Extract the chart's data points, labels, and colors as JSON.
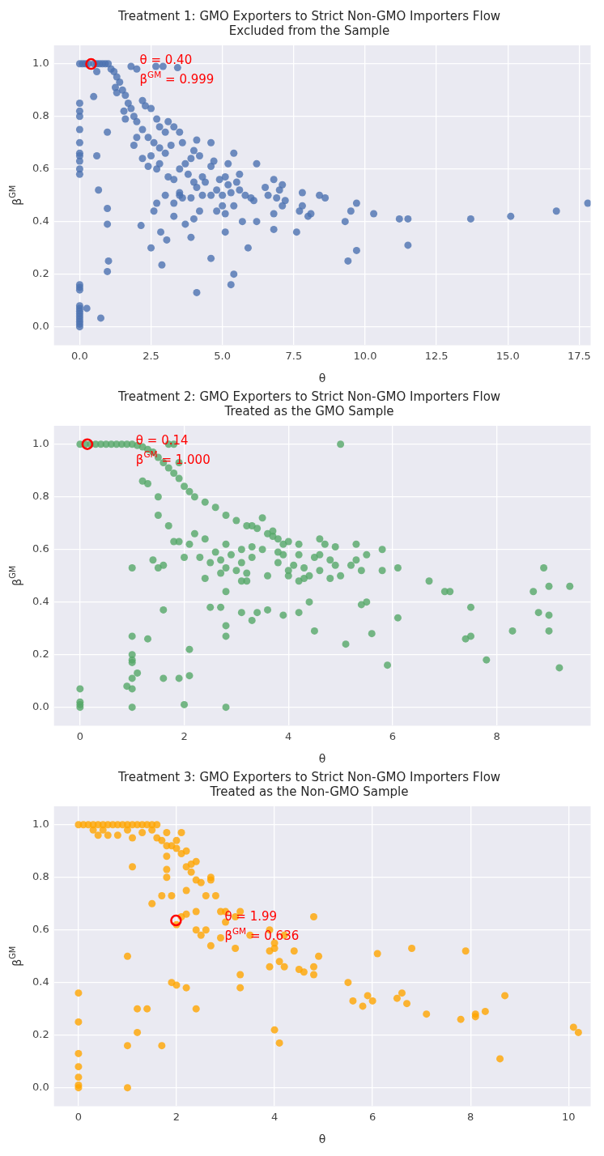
{
  "chart_data": [
    {
      "type": "scatter",
      "title": "Treatment 1: GMO Exporters to Strict Non-GMO Importers Flow",
      "subtitle": "Excluded from the Sample",
      "xlabel": "θ",
      "ylabel": "β$^{GM}$",
      "marker": "circle",
      "grid": true,
      "xlim": [
        -0.9,
        17.9
      ],
      "ylim": [
        -0.07,
        1.07
      ],
      "xticks": [
        {
          "value": 0,
          "label": "0.0"
        },
        {
          "value": 2.5,
          "label": "2.5"
        },
        {
          "value": 5,
          "label": "5.0"
        },
        {
          "value": 7.5,
          "label": "7.5"
        },
        {
          "value": 10,
          "label": "10.0"
        },
        {
          "value": 12.5,
          "label": "12.5"
        },
        {
          "value": 15,
          "label": "15.0"
        },
        {
          "value": 17.5,
          "label": "17.5"
        }
      ],
      "yticks": [
        {
          "value": 0,
          "label": "0.0"
        },
        {
          "value": 0.2,
          "label": "0.2"
        },
        {
          "value": 0.4,
          "label": "0.4"
        },
        {
          "value": 0.6,
          "label": "0.6"
        },
        {
          "value": 0.8,
          "label": "0.8"
        },
        {
          "value": 1,
          "label": "1.0"
        }
      ],
      "series": [
        {
          "color": "#4c72b0",
          "x": [
            0,
            0,
            0,
            0,
            0,
            0,
            0,
            0,
            0,
            0,
            0,
            0,
            0,
            0,
            0,
            0,
            0,
            0,
            0,
            0,
            0,
            0,
            0,
            0.1,
            0.2,
            0.3,
            0.5,
            0.6,
            0.7,
            0.8,
            0.9,
            1.0,
            0.25,
            0.74,
            0.49,
            0.6,
            0.6,
            0.66,
            0.97,
            0.97,
            0.97,
            1.01,
            0.97,
            2.15,
            2.5,
            2.88,
            2.84,
            3.05,
            2.67,
            2.92,
            3.43,
            1.1,
            1.2,
            1.3,
            1.4,
            1.5,
            1.6,
            1.7,
            1.8,
            1.9,
            2.0,
            2.2,
            2.4,
            2.6,
            2.8,
            1.25,
            1.3,
            1.55,
            1.6,
            1.9,
            2.0,
            2.2,
            2.4,
            2.5,
            2.7,
            2.2,
            2.3,
            2.5,
            2.7,
            2.8,
            3.0,
            3.1,
            3.3,
            3.5,
            3.6,
            3.2,
            3.0,
            2.8,
            3.1,
            3.3,
            3.5,
            3.7,
            3.9,
            4.0,
            4.1,
            4.2,
            3.8,
            4.0,
            4.3,
            4.1,
            4.6,
            4.7,
            4.6,
            4.4,
            4.8,
            4.9,
            5.1,
            5.2,
            5.3,
            5.0,
            5.4,
            5.2,
            5.6,
            5.5,
            5.6,
            5.8,
            6.1,
            6.2,
            6.0,
            6.5,
            6.6,
            6.8,
            6.9,
            7.0,
            7.1,
            7.2,
            7.1,
            6.8,
            6.8,
            7.6,
            7.7,
            7.8,
            7.8,
            8.0,
            8.1,
            8.4,
            8.6,
            9.3,
            9.5,
            9.7,
            10.3,
            11.2,
            11.5,
            13.7,
            15.1,
            16.7,
            17.8,
            9.7,
            9.4,
            11.5,
            5.4,
            5.3,
            4.6,
            4.1,
            3.7,
            3.9,
            3.3,
            3.0,
            2.7,
            2.6,
            3.3,
            3.5,
            3.6,
            4.0,
            4.2,
            4.8,
            5.0,
            5.1,
            5.1,
            5.7,
            5.9,
            6.2,
            5.4,
            3.9,
            4.3,
            4.6,
            3.5,
            2.0,
            1.8
          ],
          "values": [
            0.85,
            0.82,
            0.8,
            0.75,
            0.7,
            0.66,
            0.65,
            0.63,
            0.6,
            0.58,
            0.16,
            0.15,
            0.14,
            0.08,
            0.07,
            0.06,
            0.05,
            0.04,
            0.03,
            0.02,
            0.01,
            0,
            1,
            1,
            1,
            1,
            1,
            1,
            1,
            1,
            1,
            1,
            0.07,
            0.033,
            0.875,
            0.97,
            0.65,
            0.52,
            0.74,
            0.45,
            0.39,
            0.25,
            0.21,
            0.385,
            0.3,
            0.235,
            0.36,
            0.33,
            0.99,
            0.99,
            0.985,
            0.98,
            0.97,
            0.95,
            0.93,
            0.9,
            0.88,
            0.85,
            0.83,
            0.8,
            0.78,
            0.75,
            0.72,
            0.7,
            0.68,
            0.91,
            0.89,
            0.82,
            0.79,
            0.69,
            0.72,
            0.64,
            0.61,
            0.65,
            0.6,
            0.86,
            0.84,
            0.83,
            0.79,
            0.76,
            0.74,
            0.78,
            0.76,
            0.74,
            0.7,
            0.69,
            0.66,
            0.62,
            0.57,
            0.56,
            0.6,
            0.62,
            0.64,
            0.67,
            0.71,
            0.65,
            0.58,
            0.55,
            0.57,
            0.53,
            0.61,
            0.63,
            0.7,
            0.55,
            0.52,
            0.56,
            0.57,
            0.54,
            0.51,
            0.5,
            0.66,
            0.62,
            0.58,
            0.55,
            0.52,
            0.5,
            0.48,
            0.62,
            0.49,
            0.53,
            0.5,
            0.56,
            0.49,
            0.52,
            0.54,
            0.48,
            0.46,
            0.43,
            0.37,
            0.36,
            0.44,
            0.46,
            0.51,
            0.42,
            0.43,
            0.5,
            0.49,
            0.4,
            0.44,
            0.47,
            0.43,
            0.41,
            0.41,
            0.41,
            0.42,
            0.44,
            0.47,
            0.29,
            0.25,
            0.31,
            0.2,
            0.16,
            0.26,
            0.13,
            0.39,
            0.34,
            0.42,
            0.5,
            0.47,
            0.44,
            0.47,
            0.5,
            0.49,
            0.41,
            0.44,
            0.44,
            0.46,
            0.43,
            0.36,
            0.4,
            0.3,
            0.4,
            0.46,
            0.49,
            0.5,
            0.5,
            0.51,
            0.98,
            0.99
          ]
        },
        {
          "color": "#ff0000",
          "x": [
            0.4
          ],
          "values": [
            0.999
          ]
        }
      ],
      "annotations": [
        "θ = 0.40",
        "β$^{GM}$ = 0.999"
      ]
    },
    {
      "type": "scatter",
      "title": "Treatment 2: GMO Exporters to Strict Non-GMO Importers Flow",
      "subtitle": "Treated as the GMO Sample",
      "xlabel": "θ",
      "ylabel": "β$^{GM}$",
      "marker": "circle",
      "grid": true,
      "xlim": [
        -0.5,
        9.8
      ],
      "ylim": [
        -0.07,
        1.07
      ],
      "xticks": [
        0,
        2,
        4,
        6,
        8
      ],
      "yticks": [
        {
          "value": 0,
          "label": "0.0"
        },
        {
          "value": 0.2,
          "label": "0.2"
        },
        {
          "value": 0.4,
          "label": "0.4"
        },
        {
          "value": 0.6,
          "label": "0.6"
        },
        {
          "value": 0.8,
          "label": "0.8"
        },
        {
          "value": 1,
          "label": "1.0"
        }
      ],
      "series": [
        {
          "color": "#55a868",
          "x": [
            0,
            0.1,
            0.2,
            0.3,
            0.4,
            0.5,
            0.6,
            0.7,
            0.8,
            0.9,
            1.0,
            1.1,
            1.2,
            1.3,
            1.4,
            1.5,
            1.6,
            1.7,
            1.8,
            1.9,
            2.0,
            2.1,
            2.2,
            2.4,
            2.6,
            2.8,
            3.0,
            3.2,
            3.4,
            3.6,
            3.8,
            4.0,
            1.7,
            1.8,
            5.0,
            1.9,
            1.2,
            1.3,
            1.5,
            1.5,
            1.7,
            1.8,
            1.9,
            2.0,
            2.1,
            2.2,
            2.4,
            2.3,
            2.5,
            2.4,
            2.6,
            2.7,
            2.7,
            2.8,
            2.8,
            2.9,
            3.0,
            3.1,
            3.1,
            3.1,
            3.2,
            3.3,
            3.3,
            3.2,
            3.3,
            3.5,
            3.5,
            3.6,
            3.7,
            3.7,
            3.8,
            3.9,
            3.9,
            3.8,
            4.0,
            4.0,
            4.1,
            4.2,
            4.2,
            4.3,
            4.3,
            4.2,
            4.4,
            4.5,
            4.6,
            4.6,
            4.6,
            4.7,
            4.8,
            4.8,
            4.9,
            4.9,
            5.0,
            5.2,
            5.3,
            5.3,
            5.4,
            5.5,
            5.8,
            5.8,
            6.1,
            6.7,
            7.0,
            7.1,
            8.7,
            9.0,
            9.4,
            8.9,
            8.8,
            9.0,
            9.0,
            8.3,
            7.5,
            7.5,
            7.4,
            7.8,
            9.2,
            6.1,
            5.6,
            5.9,
            5.1,
            4.5,
            5.4,
            5.5,
            4.4,
            4.2,
            3.9,
            3.6,
            3.3,
            3.4,
            3.1,
            2.8,
            2.7,
            2.5,
            2.8,
            2.8,
            2.8,
            1.0,
            1.4,
            1.5,
            1.6,
            1.6,
            1.3,
            1.0,
            1.0,
            1.0,
            1.0,
            1.1,
            1.0,
            1.0,
            0.9,
            1.0,
            1.6,
            1.9,
            2.0,
            2.1,
            2.1,
            0,
            0,
            0,
            0
          ],
          "values": [
            1,
            1,
            1,
            1,
            1,
            1,
            1,
            1,
            1,
            1,
            1,
            0.995,
            0.99,
            0.98,
            0.97,
            0.95,
            0.93,
            0.91,
            0.89,
            0.87,
            0.84,
            0.82,
            0.8,
            0.78,
            0.76,
            0.73,
            0.71,
            0.69,
            0.68,
            0.66,
            0.64,
            0.63,
            1,
            1,
            1,
            0.93,
            0.86,
            0.85,
            0.8,
            0.73,
            0.69,
            0.63,
            0.63,
            0.57,
            0.62,
            0.66,
            0.64,
            0.57,
            0.55,
            0.49,
            0.59,
            0.56,
            0.51,
            0.62,
            0.53,
            0.58,
            0.52,
            0.6,
            0.55,
            0.48,
            0.51,
            0.57,
            0.61,
            0.48,
            0.69,
            0.72,
            0.6,
            0.5,
            0.65,
            0.67,
            0.59,
            0.62,
            0.58,
            0.55,
            0.52,
            0.5,
            0.54,
            0.58,
            0.62,
            0.53,
            0.49,
            0.48,
            0.5,
            0.57,
            0.52,
            0.58,
            0.64,
            0.62,
            0.56,
            0.49,
            0.54,
            0.61,
            0.5,
            0.54,
            0.56,
            0.62,
            0.52,
            0.58,
            0.6,
            0.52,
            0.53,
            0.48,
            0.44,
            0.44,
            0.44,
            0.46,
            0.46,
            0.53,
            0.36,
            0.35,
            0.29,
            0.29,
            0.38,
            0.27,
            0.26,
            0.18,
            0.15,
            0.34,
            0.28,
            0.16,
            0.24,
            0.29,
            0.39,
            0.4,
            0.4,
            0.36,
            0.35,
            0.37,
            0.33,
            0.36,
            0.36,
            0.44,
            0.38,
            0.38,
            0.31,
            0.27,
            0,
            0.53,
            0.56,
            0.53,
            0.54,
            0.37,
            0.26,
            0.27,
            0.2,
            0.18,
            0.17,
            0.13,
            0.11,
            0.07,
            0.08,
            0,
            0.11,
            0.11,
            0.01,
            0.12,
            0.22,
            0.07,
            0.02,
            0.01,
            0
          ]
        },
        {
          "color": "#ff0000",
          "x": [
            0.14
          ],
          "values": [
            1.0
          ]
        }
      ],
      "annotations": [
        "θ = 0.14",
        "β$^{GM}$ = 1.000"
      ]
    },
    {
      "type": "scatter",
      "title": "Treatment 3: GMO Exporters to Strict Non-GMO Importers Flow",
      "subtitle": "Treated as the Non-GMO Sample",
      "xlabel": "θ",
      "ylabel": "β$^{GM}$",
      "marker": "circle",
      "grid": true,
      "xlim": [
        -0.5,
        10.45
      ],
      "ylim": [
        -0.07,
        1.07
      ],
      "xticks": [
        0,
        2,
        4,
        6,
        8,
        10
      ],
      "yticks": [
        {
          "value": 0,
          "label": "0.0"
        },
        {
          "value": 0.2,
          "label": "0.2"
        },
        {
          "value": 0.4,
          "label": "0.4"
        },
        {
          "value": 0.6,
          "label": "0.6"
        },
        {
          "value": 0.8,
          "label": "0.8"
        },
        {
          "value": 1,
          "label": "1.0"
        }
      ],
      "series": [
        {
          "color": "#ffa500",
          "x": [
            0,
            0.1,
            0.2,
            0.3,
            0.4,
            0.5,
            0.6,
            0.7,
            0.8,
            0.9,
            1.0,
            1.1,
            1.2,
            1.3,
            1.4,
            1.5,
            1.6,
            0.3,
            0.4,
            0.5,
            0.6,
            0.8,
            1.0,
            1.1,
            1.3,
            1.5,
            1.6,
            1.7,
            1.8,
            1.8,
            1.9,
            2.0,
            2.0,
            2.1,
            2.2,
            2.1,
            1.8,
            1.8,
            1.8,
            2.2,
            2.3,
            2.4,
            2.3,
            2.4,
            2.5,
            2.7,
            2.7,
            2.6,
            2.8,
            2.2,
            1.7,
            1.9,
            1.5,
            2.2,
            2.4,
            2.1,
            2.0,
            2.4,
            2.5,
            2.6,
            2.7,
            2.9,
            3.0,
            3.2,
            3.3,
            3.0,
            2.9,
            3.2,
            3.3,
            3.3,
            3.5,
            3.9,
            3.9,
            3.9,
            4.0,
            4.0,
            4.1,
            4.2,
            4.2,
            4.4,
            4.5,
            4.6,
            4.8,
            4.8,
            4.9,
            4.8,
            5.5,
            5.6,
            5.8,
            5.9,
            6.0,
            6.1,
            6.5,
            6.6,
            6.7,
            6.8,
            7.1,
            7.8,
            7.9,
            8.1,
            8.1,
            8.3,
            8.6,
            8.7,
            10.1,
            10.2,
            4.0,
            4.1,
            2.4,
            2.2,
            2.0,
            1.9,
            1.7,
            1.4,
            1.2,
            1.2,
            1.0,
            1.0,
            1.0,
            1.1,
            0,
            0,
            0,
            0,
            0,
            0,
            0
          ],
          "values": [
            1,
            1,
            1,
            1,
            1,
            1,
            1,
            1,
            1,
            1,
            1,
            1,
            1,
            1,
            1,
            1,
            1,
            0.98,
            0.96,
            0.98,
            0.96,
            0.96,
            0.98,
            0.95,
            0.97,
            0.98,
            0.95,
            0.94,
            0.97,
            0.92,
            0.92,
            0.94,
            0.91,
            0.89,
            0.9,
            0.97,
            0.88,
            0.83,
            0.8,
            0.84,
            0.85,
            0.86,
            0.82,
            0.79,
            0.78,
            0.79,
            0.8,
            0.73,
            0.73,
            0.75,
            0.73,
            0.73,
            0.7,
            0.66,
            0.67,
            0.65,
            0.62,
            0.6,
            0.58,
            0.6,
            0.54,
            0.67,
            0.67,
            0.65,
            0.67,
            0.63,
            0.57,
            0.53,
            0.43,
            0.38,
            0.58,
            0.6,
            0.52,
            0.46,
            0.55,
            0.53,
            0.48,
            0.46,
            0.58,
            0.52,
            0.45,
            0.44,
            0.46,
            0.43,
            0.5,
            0.65,
            0.4,
            0.33,
            0.31,
            0.35,
            0.33,
            0.51,
            0.34,
            0.36,
            0.32,
            0.53,
            0.28,
            0.26,
            0.52,
            0.28,
            0.27,
            0.29,
            0.11,
            0.35,
            0.23,
            0.21,
            0.22,
            0.17,
            0.3,
            0.38,
            0.39,
            0.4,
            0.16,
            0.3,
            0.3,
            0.21,
            0.5,
            0.16,
            0,
            0.84,
            0.36,
            0.25,
            0.13,
            0.08,
            0.04,
            0.01,
            0
          ]
        },
        {
          "color": "#ff0000",
          "x": [
            1.99
          ],
          "values": [
            0.636
          ]
        }
      ],
      "annotations": [
        "θ = 1.99",
        "β$^{GM}$ = 0.636"
      ]
    }
  ]
}
